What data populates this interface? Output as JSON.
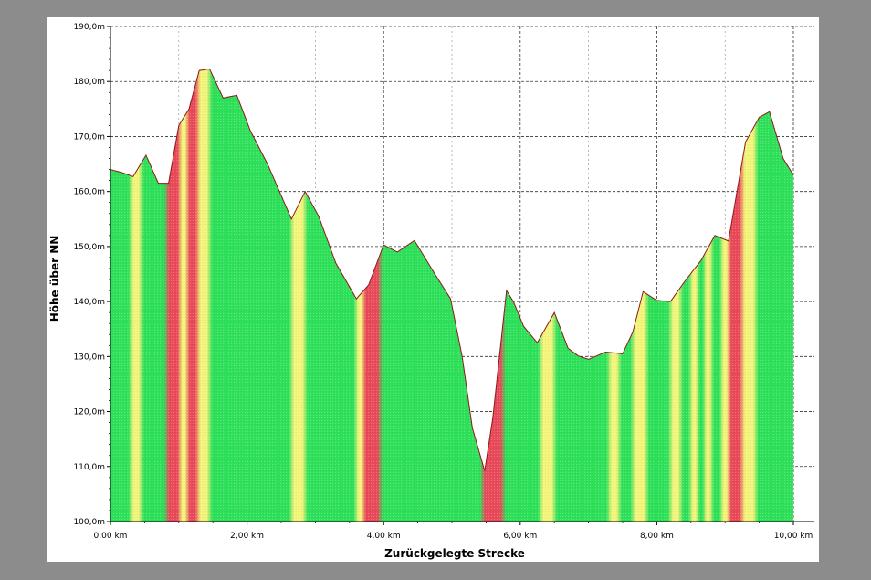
{
  "chart_data": {
    "type": "area",
    "xlabel": "Zurückgelegte Strecke",
    "ylabel": "Höhe über NN",
    "xlim": [
      0,
      10
    ],
    "ylim": [
      100,
      190
    ],
    "grid": true,
    "x_ticks": [
      {
        "value": 0,
        "label": "0,00 km"
      },
      {
        "value": 2,
        "label": "2,00 km"
      },
      {
        "value": 4,
        "label": "4,00 km"
      },
      {
        "value": 6,
        "label": "6,00 km"
      },
      {
        "value": 8,
        "label": "8,00 km"
      },
      {
        "value": 10,
        "label": "10,00 km"
      }
    ],
    "y_ticks": [
      {
        "value": 100,
        "label": "100,0m"
      },
      {
        "value": 110,
        "label": "110,0m"
      },
      {
        "value": 120,
        "label": "120,0m"
      },
      {
        "value": 130,
        "label": "130,0m"
      },
      {
        "value": 140,
        "label": "140,0m"
      },
      {
        "value": 150,
        "label": "150,0m"
      },
      {
        "value": 160,
        "label": "160,0m"
      },
      {
        "value": 170,
        "label": "170,0m"
      },
      {
        "value": 180,
        "label": "180,0m"
      },
      {
        "value": 190,
        "label": "190,0m"
      }
    ],
    "series": [
      {
        "x": [
          0,
          0.18,
          0.33,
          0.52,
          0.7,
          0.85,
          1.0,
          1.15,
          1.3,
          1.45,
          1.65,
          1.85,
          2.05,
          2.3,
          2.65,
          2.85,
          3.05,
          3.3,
          3.6,
          3.78,
          4.0,
          4.2,
          4.45,
          4.75,
          4.98,
          5.15,
          5.3,
          5.48,
          5.6,
          5.8,
          5.9,
          6.05,
          6.25,
          6.5,
          6.7,
          6.85,
          7.0,
          7.1,
          7.25,
          7.5,
          7.65,
          7.8,
          8.0,
          8.2,
          8.4,
          8.65,
          8.85,
          9.05,
          9.3,
          9.5,
          9.65,
          9.85,
          10.0
        ],
        "y": [
          164,
          163.4,
          162.7,
          166.6,
          161.5,
          161.5,
          172,
          175,
          182,
          182.3,
          177,
          177.5,
          171,
          165,
          155,
          160,
          155.5,
          147,
          140.5,
          143,
          150.3,
          149,
          151.1,
          145,
          140.5,
          130,
          117,
          109.2,
          119,
          142,
          140,
          135.5,
          132.5,
          138,
          131.5,
          130.1,
          129.5,
          130,
          130.8,
          130.5,
          134.5,
          141.8,
          140.2,
          140,
          143.5,
          147.5,
          152,
          151,
          169,
          173.5,
          174.5,
          166,
          163
        ]
      }
    ],
    "gradient_colors": {
      "green": "#2fe05a",
      "yellow": "#f3f57a",
      "red": "#e84a5a",
      "line": "#8b1a1a"
    },
    "slope_bands": [
      {
        "from": 0,
        "to": 0.3,
        "color": "green"
      },
      {
        "from": 0.3,
        "to": 0.45,
        "color": "yellow"
      },
      {
        "from": 0.45,
        "to": 0.82,
        "color": "green"
      },
      {
        "from": 0.82,
        "to": 1.02,
        "color": "red"
      },
      {
        "from": 1.02,
        "to": 1.12,
        "color": "yellow"
      },
      {
        "from": 1.12,
        "to": 1.28,
        "color": "red"
      },
      {
        "from": 1.28,
        "to": 1.45,
        "color": "yellow"
      },
      {
        "from": 1.45,
        "to": 2.65,
        "color": "green"
      },
      {
        "from": 2.65,
        "to": 2.85,
        "color": "yellow"
      },
      {
        "from": 2.85,
        "to": 3.6,
        "color": "green"
      },
      {
        "from": 3.6,
        "to": 3.7,
        "color": "yellow"
      },
      {
        "from": 3.7,
        "to": 3.95,
        "color": "red"
      },
      {
        "from": 3.95,
        "to": 4.4,
        "color": "green"
      },
      {
        "from": 4.4,
        "to": 5.45,
        "color": "green"
      },
      {
        "from": 5.45,
        "to": 5.75,
        "color": "red"
      },
      {
        "from": 5.75,
        "to": 6.3,
        "color": "green"
      },
      {
        "from": 6.3,
        "to": 6.5,
        "color": "yellow"
      },
      {
        "from": 6.5,
        "to": 7.3,
        "color": "green"
      },
      {
        "from": 7.3,
        "to": 7.45,
        "color": "yellow"
      },
      {
        "from": 7.45,
        "to": 7.65,
        "color": "green"
      },
      {
        "from": 7.65,
        "to": 7.85,
        "color": "yellow"
      },
      {
        "from": 7.85,
        "to": 8.2,
        "color": "green"
      },
      {
        "from": 8.2,
        "to": 8.35,
        "color": "yellow"
      },
      {
        "from": 8.35,
        "to": 8.5,
        "color": "green"
      },
      {
        "from": 8.5,
        "to": 8.6,
        "color": "yellow"
      },
      {
        "from": 8.6,
        "to": 8.7,
        "color": "green"
      },
      {
        "from": 8.7,
        "to": 8.8,
        "color": "yellow"
      },
      {
        "from": 8.8,
        "to": 8.95,
        "color": "green"
      },
      {
        "from": 8.95,
        "to": 9.05,
        "color": "yellow"
      },
      {
        "from": 9.05,
        "to": 9.25,
        "color": "red"
      },
      {
        "from": 9.25,
        "to": 9.45,
        "color": "yellow"
      },
      {
        "from": 9.45,
        "to": 10.0,
        "color": "green"
      }
    ]
  }
}
